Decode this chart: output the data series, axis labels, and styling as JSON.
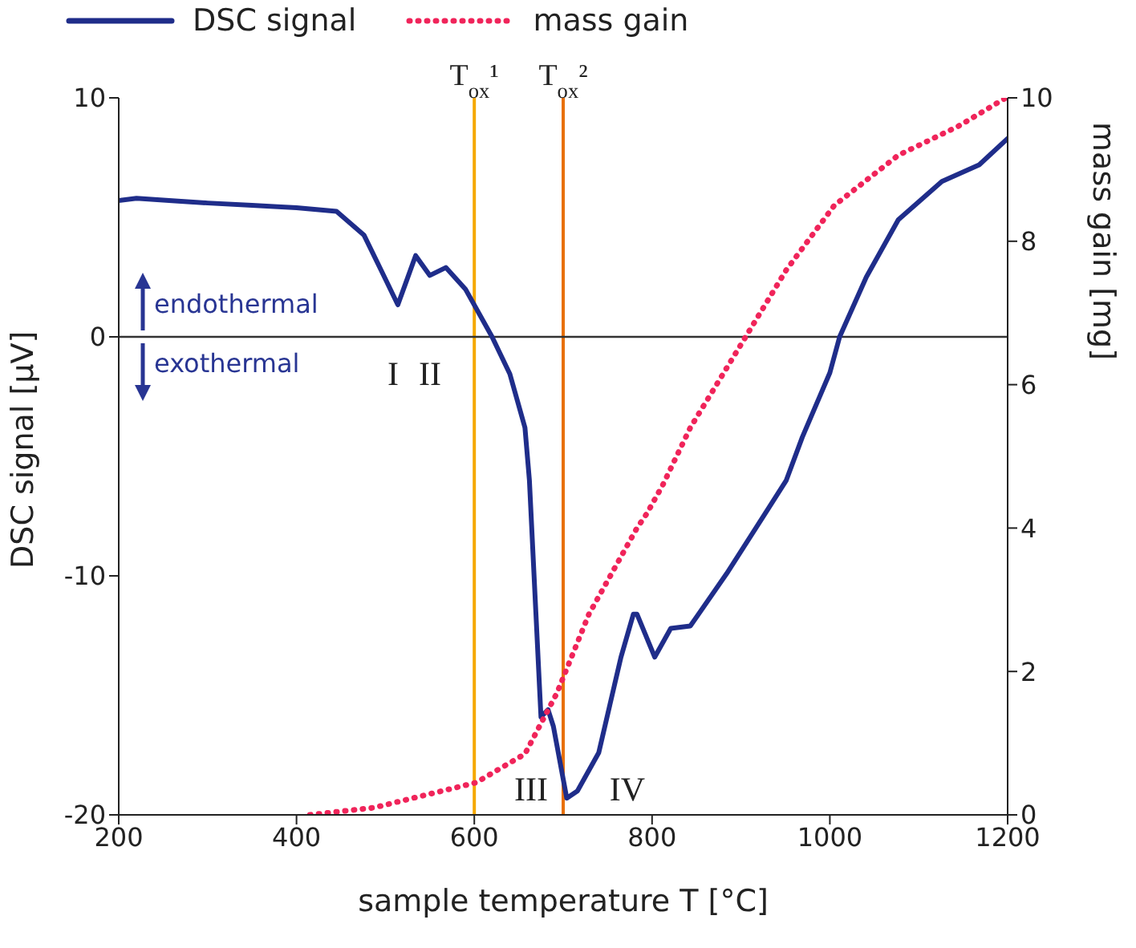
{
  "chart_data": {
    "type": "line",
    "xlabel": "sample temperature T [°C]",
    "ylabel": "DSC signal [µV]",
    "y2label": "mass gain [mg]",
    "xlim": [
      200,
      1200
    ],
    "xticks": [
      200,
      400,
      600,
      800,
      1000,
      1200
    ],
    "ylim": [
      -20,
      10
    ],
    "yticks": [
      -20,
      -10,
      0,
      10
    ],
    "y2lim": [
      0,
      10
    ],
    "y2ticks": [
      0,
      2,
      4,
      6,
      8,
      10
    ],
    "legend": "top left",
    "marker": "none",
    "series": [
      {
        "name": "DSC signal",
        "color": "#1f2d8a",
        "line_style": "solid",
        "x": [
          200,
          220,
          260,
          300,
          350,
          400,
          430,
          445,
          476,
          495,
          514,
          534,
          550,
          568,
          590,
          620,
          640,
          657,
          662,
          675,
          683,
          689,
          704,
          716,
          740,
          765,
          779,
          783,
          803,
          821,
          843,
          884,
          927,
          951,
          969,
          1000,
          1011,
          1041,
          1077,
          1126,
          1168,
          1200
        ],
        "values": [
          5.7,
          5.8,
          5.7,
          5.6,
          5.5,
          5.4,
          5.3,
          5.25,
          4.25,
          2.8,
          1.34,
          3.4,
          2.57,
          2.9,
          2.0,
          0,
          -1.55,
          -3.8,
          -6,
          -15.9,
          -15.6,
          -16.3,
          -19.3,
          -19.0,
          -17.4,
          -13.4,
          -11.6,
          -11.6,
          -13.4,
          -12.2,
          -12.1,
          -9.9,
          -7.4,
          -6.0,
          -4.2,
          -1.5,
          0,
          2.5,
          4.9,
          6.5,
          7.2,
          8.3
        ]
      },
      {
        "name": "mass gain",
        "color": "#f0245a",
        "line_style": "dotted",
        "axis": "y2",
        "x": [
          415,
          487,
          602,
          657,
          693,
          729,
          783,
          794,
          812,
          843,
          902,
          951,
          1005,
          1077,
          1144,
          1198
        ],
        "values": [
          0,
          0.1,
          0.45,
          0.85,
          1.7,
          2.8,
          4.0,
          4.2,
          4.6,
          5.4,
          6.6,
          7.6,
          8.5,
          9.2,
          9.6,
          10
        ]
      }
    ],
    "ref_lines": [
      {
        "axis": "x",
        "value": 600,
        "label": "T$_{ox}$¹",
        "color": "#f5a800"
      },
      {
        "axis": "x",
        "value": 700,
        "label": "T$_{ox}$²",
        "color": "#e8700a"
      },
      {
        "axis": "y",
        "value": 0,
        "color": "#333333"
      }
    ],
    "annotations": [
      "endothermal",
      "exothermal",
      "I",
      "II",
      "III",
      "IV"
    ]
  }
}
